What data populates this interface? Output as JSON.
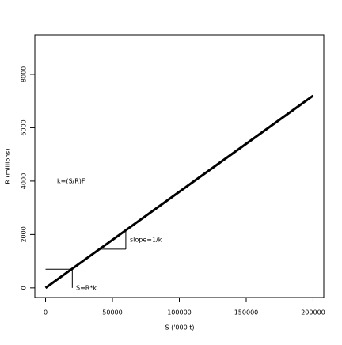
{
  "chart_data": {
    "type": "line",
    "x_label": "S ('000 t)",
    "y_label": "R (millions)",
    "x": [
      0,
      200000
    ],
    "series": [
      {
        "name": "R",
        "color": "#000000",
        "values": [
          0,
          7200
        ]
      }
    ],
    "segments": [
      {
        "x": [
          0,
          20000
        ],
        "y": [
          700,
          700
        ]
      },
      {
        "x": [
          20000,
          20000
        ],
        "y": [
          700,
          0
        ]
      },
      {
        "x": [
          40000,
          60000
        ],
        "y": [
          1450,
          1450
        ]
      },
      {
        "x": [
          60000,
          60000
        ],
        "y": [
          1450,
          2140
        ]
      }
    ],
    "annotations": [
      "k=(S/R)F",
      "slope=1/k",
      "S=R*k"
    ],
    "xlim": [
      -8000,
      208000
    ],
    "xticks": [
      0,
      50000,
      100000,
      150000,
      200000
    ],
    "ylim": [
      -360,
      9480
    ],
    "yticks": [
      0,
      2000,
      4000,
      6000,
      8000
    ],
    "grid": false
  }
}
